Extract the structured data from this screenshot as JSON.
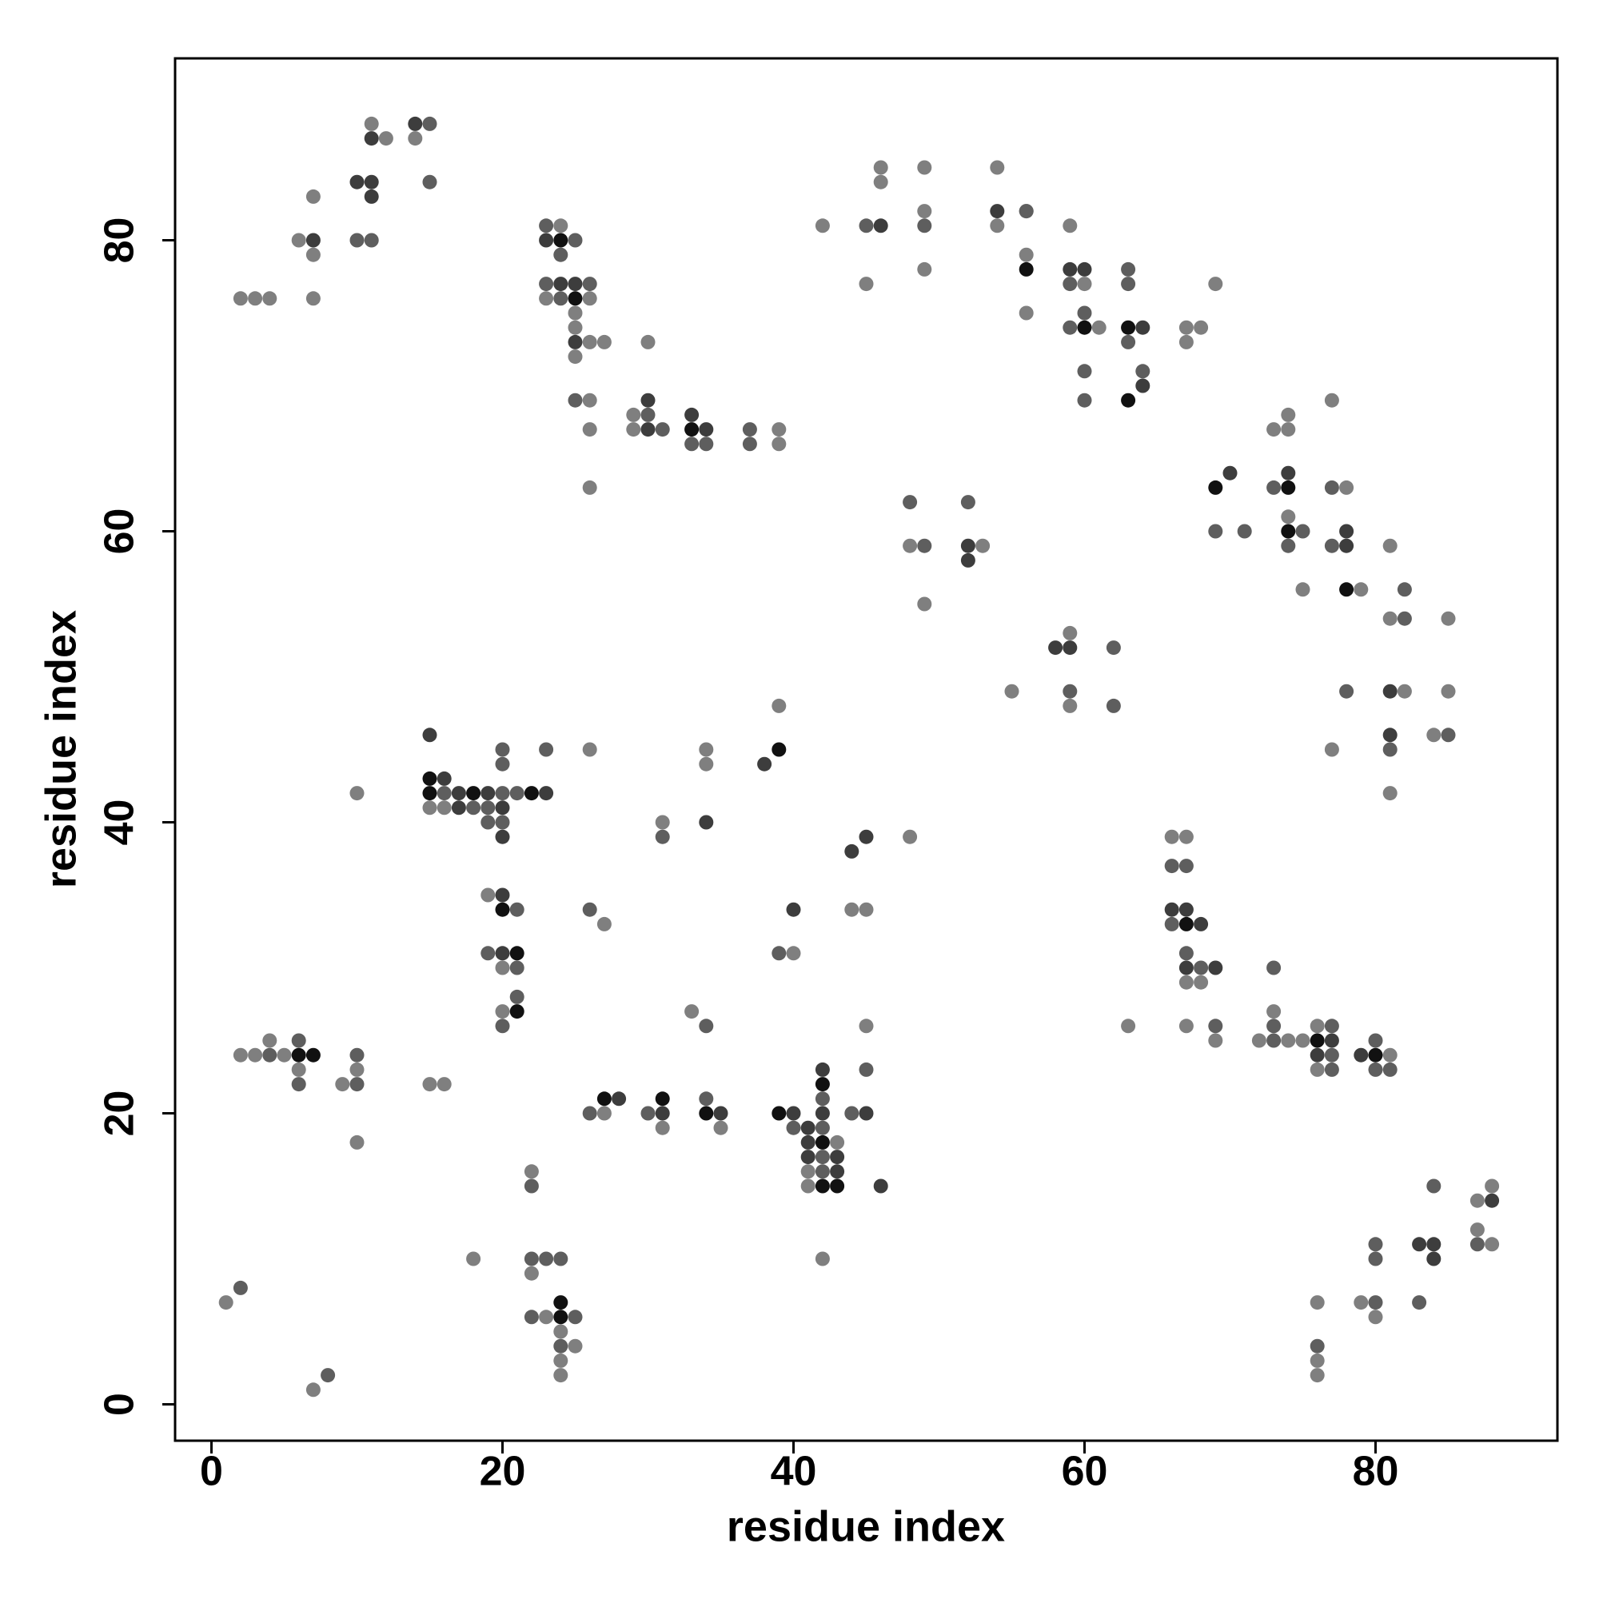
{
  "chart_data": {
    "type": "scatter",
    "x_label": "residue index",
    "y_label": "residue index",
    "xlim": [
      -2.5,
      92.5
    ],
    "ylim": [
      -2.5,
      92.5
    ],
    "xticks": [
      0,
      20,
      40,
      60,
      80
    ],
    "yticks": [
      0,
      20,
      40,
      60,
      80
    ],
    "series": [
      {
        "color": "#7f7f7f",
        "x": [
          11,
          12,
          14,
          46,
          49,
          54,
          46,
          7,
          49,
          56,
          24,
          42,
          59,
          54,
          6,
          7,
          56,
          49,
          45,
          60,
          69,
          2,
          3,
          4,
          7,
          23,
          26,
          25,
          56,
          25,
          61,
          67,
          68,
          26,
          27,
          30,
          67,
          25,
          26,
          77,
          29,
          74,
          26,
          29,
          39,
          73,
          74,
          39,
          26,
          78,
          74,
          48,
          53,
          81,
          75,
          79,
          49,
          81,
          85,
          59,
          55,
          82,
          85,
          59,
          39,
          84,
          26,
          34,
          77,
          34,
          10,
          81,
          15,
          16,
          31,
          48,
          66,
          67,
          19,
          44,
          45,
          27,
          40,
          20,
          67,
          68,
          20,
          33,
          73,
          45,
          63,
          67,
          76,
          4,
          69,
          72,
          74,
          75,
          2,
          3,
          5,
          81,
          6,
          10,
          76,
          9,
          15,
          16,
          27,
          31,
          35,
          10,
          43,
          22,
          41,
          41,
          88,
          87,
          87,
          88,
          18,
          42,
          22,
          1,
          76,
          79,
          23,
          80,
          24,
          25,
          24,
          76,
          24,
          76,
          7
        ],
        "y": [
          88,
          87,
          87,
          85,
          85,
          85,
          84,
          83,
          82,
          82,
          81,
          81,
          81,
          81,
          80,
          79,
          79,
          78,
          77,
          77,
          77,
          76,
          76,
          76,
          76,
          76,
          76,
          75,
          75,
          74,
          74,
          74,
          74,
          73,
          73,
          73,
          73,
          72,
          69,
          69,
          68,
          68,
          67,
          67,
          67,
          67,
          67,
          66,
          63,
          63,
          61,
          59,
          59,
          59,
          56,
          56,
          55,
          54,
          54,
          53,
          49,
          49,
          49,
          48,
          48,
          46,
          45,
          45,
          45,
          44,
          42,
          42,
          41,
          41,
          40,
          39,
          39,
          39,
          35,
          34,
          34,
          33,
          31,
          30,
          29,
          29,
          27,
          27,
          27,
          26,
          26,
          26,
          26,
          25,
          25,
          25,
          25,
          25,
          24,
          24,
          24,
          24,
          23,
          23,
          23,
          22,
          22,
          22,
          20,
          19,
          19,
          18,
          18,
          16,
          16,
          15,
          15,
          14,
          12,
          11,
          10,
          10,
          9,
          7,
          7,
          7,
          6,
          6,
          5,
          4,
          3,
          3,
          2,
          2,
          1
        ]
      },
      {
        "color": "#5e5e5e",
        "x": [
          15,
          15,
          56,
          23,
          45,
          49,
          10,
          11,
          25,
          24,
          63,
          23,
          26,
          59,
          63,
          24,
          60,
          59,
          63,
          60,
          64,
          25,
          60,
          30,
          31,
          37,
          33,
          34,
          37,
          73,
          77,
          48,
          52,
          69,
          71,
          75,
          49,
          74,
          77,
          82,
          82,
          62,
          59,
          78,
          62,
          85,
          20,
          23,
          81,
          20,
          16,
          20,
          21,
          18,
          19,
          19,
          20,
          31,
          66,
          67,
          21,
          26,
          66,
          19,
          39,
          67,
          21,
          68,
          73,
          21,
          20,
          34,
          69,
          73,
          77,
          6,
          73,
          80,
          4,
          10,
          77,
          45,
          77,
          80,
          81,
          6,
          10,
          34,
          42,
          26,
          30,
          44,
          40,
          42,
          42,
          42,
          22,
          84,
          80,
          87,
          22,
          23,
          24,
          80,
          2,
          80,
          83,
          22,
          25,
          24,
          76,
          8
        ],
        "y": [
          88,
          84,
          82,
          81,
          81,
          81,
          80,
          80,
          80,
          79,
          78,
          77,
          77,
          77,
          77,
          76,
          75,
          74,
          73,
          71,
          71,
          69,
          69,
          68,
          67,
          67,
          66,
          66,
          66,
          63,
          63,
          62,
          62,
          60,
          60,
          60,
          59,
          59,
          59,
          56,
          54,
          52,
          49,
          49,
          48,
          46,
          45,
          45,
          45,
          44,
          42,
          42,
          42,
          41,
          41,
          40,
          40,
          39,
          37,
          37,
          34,
          34,
          33,
          31,
          31,
          31,
          30,
          30,
          30,
          28,
          26,
          26,
          26,
          26,
          26,
          25,
          25,
          25,
          24,
          24,
          24,
          23,
          23,
          23,
          23,
          22,
          22,
          21,
          21,
          20,
          20,
          20,
          19,
          19,
          17,
          16,
          15,
          15,
          11,
          11,
          10,
          10,
          10,
          10,
          8,
          7,
          7,
          6,
          6,
          4,
          4,
          2
        ]
      },
      {
        "color": "#3d3d3d",
        "x": [
          14,
          11,
          10,
          11,
          11,
          54,
          46,
          7,
          23,
          59,
          60,
          24,
          25,
          64,
          25,
          64,
          30,
          33,
          30,
          34,
          70,
          74,
          78,
          52,
          78,
          52,
          58,
          59,
          81,
          15,
          81,
          38,
          16,
          17,
          19,
          23,
          17,
          20,
          34,
          20,
          45,
          44,
          20,
          40,
          66,
          67,
          68,
          20,
          67,
          69,
          77,
          76,
          79,
          42,
          28,
          31,
          35,
          40,
          42,
          45,
          41,
          41,
          41,
          43,
          43,
          46,
          88,
          83,
          84,
          84
        ],
        "y": [
          88,
          87,
          84,
          84,
          83,
          82,
          81,
          80,
          80,
          78,
          78,
          77,
          77,
          74,
          73,
          70,
          69,
          68,
          67,
          67,
          64,
          64,
          60,
          59,
          59,
          58,
          52,
          52,
          49,
          46,
          46,
          44,
          43,
          42,
          42,
          42,
          41,
          41,
          40,
          39,
          39,
          38,
          35,
          34,
          34,
          34,
          33,
          31,
          30,
          30,
          25,
          24,
          24,
          23,
          21,
          20,
          20,
          20,
          20,
          20,
          19,
          18,
          17,
          17,
          16,
          15,
          14,
          11,
          11,
          10
        ]
      },
      {
        "color": "#111111",
        "x": [
          24,
          56,
          25,
          60,
          63,
          63,
          33,
          69,
          74,
          74,
          78,
          39,
          15,
          15,
          18,
          22,
          20,
          67,
          21,
          21,
          76,
          6,
          7,
          80,
          42,
          27,
          31,
          34,
          39,
          42,
          42,
          43,
          24,
          24
        ],
        "y": [
          80,
          78,
          76,
          74,
          74,
          69,
          67,
          63,
          63,
          60,
          56,
          45,
          43,
          42,
          42,
          42,
          34,
          33,
          31,
          27,
          25,
          24,
          24,
          24,
          22,
          21,
          21,
          20,
          20,
          18,
          15,
          15,
          7,
          6
        ]
      }
    ]
  }
}
